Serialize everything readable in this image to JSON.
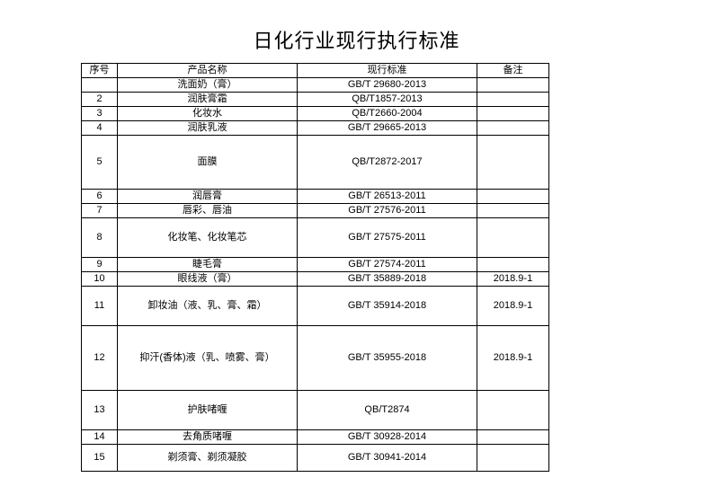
{
  "title": "日化行业现行执行标准",
  "table": {
    "headers": {
      "seq": "序号",
      "name": "产品名称",
      "std": "现行标准",
      "note": "备注"
    },
    "rowHeights": {
      "h_head": 16,
      "h_s": 16,
      "h_m": 30,
      "h_l": 44,
      "h_xl": 60,
      "h_xxl": 72
    },
    "background_color": "#ffffff",
    "border_color": "#000000",
    "text_color": "#000000",
    "font_size_body": 11,
    "font_size_title": 22,
    "rows": [
      {
        "seq": "",
        "name": "洗面奶（膏）",
        "std": "GB/T 29680-2013",
        "note": "",
        "h": "h_s"
      },
      {
        "seq": "2",
        "name": "润肤膏霜",
        "std": "QB/T1857-2013",
        "note": "",
        "h": "h_s"
      },
      {
        "seq": "3",
        "name": "化妆水",
        "std": "QB/T2660-2004",
        "note": "",
        "h": "h_s"
      },
      {
        "seq": "4",
        "name": "润肤乳液",
        "std": "GB/T 29665-2013",
        "note": "",
        "h": "h_s"
      },
      {
        "seq": "5",
        "name": "面膜",
        "std": "QB/T2872-2017",
        "note": "",
        "h": "h_xl"
      },
      {
        "seq": "6",
        "name": "润唇膏",
        "std": "GB/T 26513-2011",
        "note": "",
        "h": "h_s"
      },
      {
        "seq": "7",
        "name": "唇彩、唇油",
        "std": "GB/T 27576-2011",
        "note": "",
        "h": "h_s"
      },
      {
        "seq": "8",
        "name": "化妆笔、化妆笔芯",
        "std": "GB/T 27575-2011",
        "note": "",
        "h": "h_l"
      },
      {
        "seq": "9",
        "name": "睫毛膏",
        "std": "GB/T 27574-2011",
        "note": "",
        "h": "h_s"
      },
      {
        "seq": "10",
        "name": "眼线液（膏）",
        "std": "GB/T 35889-2018",
        "note": "2018.9-1",
        "h": "h_s"
      },
      {
        "seq": "11",
        "name": "卸妆油（液、乳、膏、霜）",
        "std": "GB/T 35914-2018",
        "note": "2018.9-1",
        "h": "h_l"
      },
      {
        "seq": "12",
        "name": "抑汗(香体)液（乳、喷雾、膏）",
        "std": "GB/T 35955-2018",
        "note": "2018.9-1",
        "h": "h_xxl"
      },
      {
        "seq": "13",
        "name": "护肤啫喱",
        "std": "QB/T2874",
        "note": "",
        "h": "h_l"
      },
      {
        "seq": "14",
        "name": "去角质啫喱",
        "std": "GB/T 30928-2014",
        "note": "",
        "h": "h_s"
      },
      {
        "seq": "15",
        "name": "剃须膏、剃须凝胶",
        "std": "GB/T 30941-2014",
        "note": "",
        "h": "h_m"
      }
    ]
  }
}
